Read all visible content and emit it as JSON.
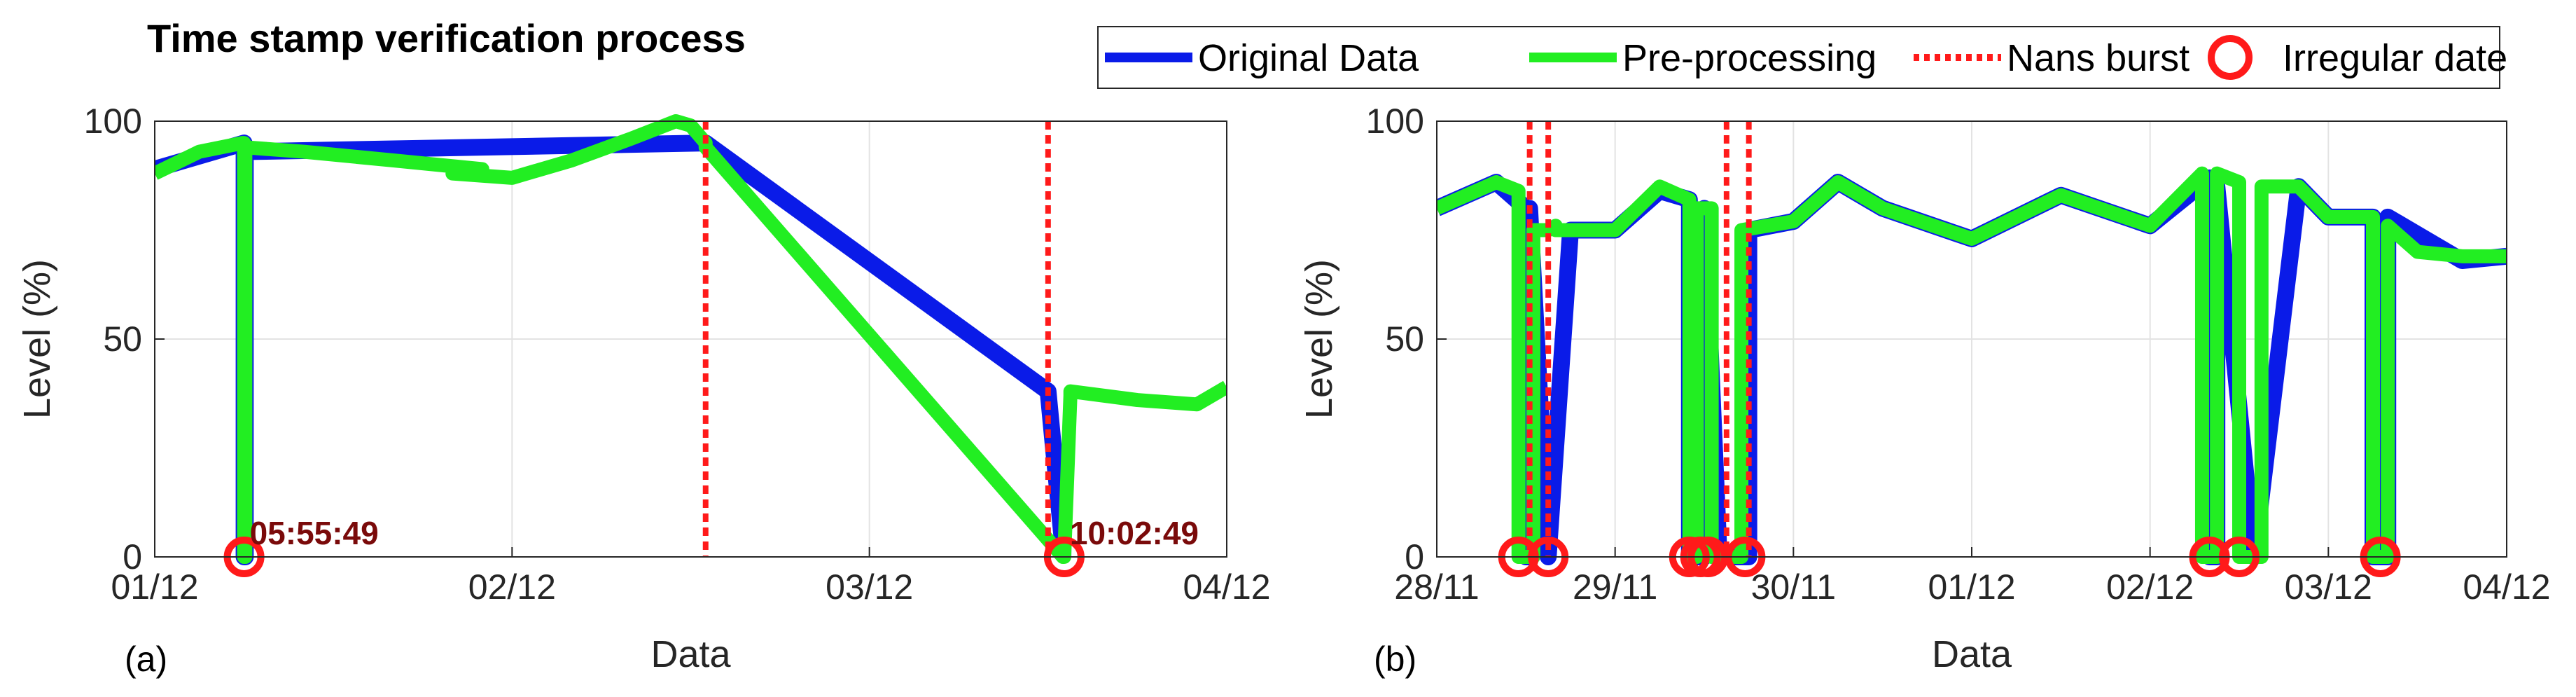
{
  "title": "Time stamp verification process",
  "colors": {
    "original": "#0a1be8",
    "preprocessing": "#22ee22",
    "nans": "#ff1a1a",
    "irregular": "#ff1a1a",
    "annotation": "#7a0a0a"
  },
  "legend": [
    {
      "key": "original",
      "label": "Original Data",
      "style": "line"
    },
    {
      "key": "preprocessing",
      "label": "Pre-processing",
      "style": "line"
    },
    {
      "key": "nans",
      "label": "Nans burst",
      "style": "dotted"
    },
    {
      "key": "irregular",
      "label": "Irregular date",
      "style": "circle"
    }
  ],
  "chart_data": [
    {
      "type": "line",
      "panel_label": "(a)",
      "xlabel": "Data",
      "ylabel": "Level (%)",
      "xlim": [
        "01/12 00:00",
        "04/12 00:00"
      ],
      "ylim": [
        0,
        100
      ],
      "yticks": [
        0,
        50,
        100
      ],
      "xticks": [
        "01/12",
        "02/12",
        "03/12",
        "04/12"
      ],
      "grid": true,
      "series": [
        {
          "name": "Original Data",
          "key": "original",
          "x": [
            "01/12 00:00",
            "01/12 06:00",
            "01/12 06:00",
            "01/12 06:05",
            "01/12 06:05",
            "02/12 13:00",
            "03/12 12:00",
            "03/12 13:00",
            "03/12 13:00"
          ],
          "y": [
            89,
            95,
            0,
            0,
            93,
            95,
            38,
            2,
            0
          ]
        },
        {
          "name": "Pre-processing",
          "key": "preprocessing",
          "x": [
            "01/12 00:00",
            "01/12 03:00",
            "01/12 05:55",
            "01/12 06:00",
            "01/12 06:00",
            "01/12 06:05",
            "01/12 06:05",
            "01/12 10:00",
            "01/12 16:00",
            "01/12 22:00",
            "01/12 20:00",
            "02/12 00:00",
            "02/12 04:00",
            "02/12 08:00",
            "02/12 11:00",
            "02/12 12:00",
            "02/12 13:00",
            "02/12 13:00",
            "03/12 13:00",
            "03/12 13:05",
            "03/12 13:30",
            "03/12 13:30",
            "03/12 18:00",
            "03/12 22:00",
            "04/12 00:00"
          ],
          "y": [
            88,
            93,
            95,
            95,
            0,
            0,
            94,
            93,
            91,
            89,
            88,
            87,
            91,
            96,
            100,
            99,
            95,
            94,
            0,
            0,
            37,
            38,
            36,
            35,
            39
          ]
        },
        {
          "name": "Nans burst",
          "key": "nans",
          "x": [
            "02/12 13:00",
            "03/12 12:00"
          ]
        },
        {
          "name": "Irregular date",
          "key": "irregular",
          "x": [
            "01/12 06:00",
            "03/12 13:05"
          ],
          "y": [
            0,
            0
          ]
        }
      ],
      "annotations": [
        {
          "text": "05:55:49",
          "x": "01/12 06:00",
          "y": 0
        },
        {
          "text": "10:02:49",
          "x": "03/12 13:05",
          "y": 0
        }
      ]
    },
    {
      "type": "line",
      "panel_label": "(b)",
      "xlabel": "Data",
      "ylabel": "Level (%)",
      "xlim": [
        "28/11 00:00",
        "04/12 00:00"
      ],
      "ylim": [
        0,
        100
      ],
      "yticks": [
        0,
        50,
        100
      ],
      "xticks": [
        "28/11",
        "29/11",
        "30/11",
        "01/12",
        "02/12",
        "03/12",
        "04/12"
      ],
      "grid": true,
      "series": [
        {
          "name": "Original Data",
          "key": "original",
          "x": [
            "28/11 00:00",
            "28/11 08:00",
            "28/11 12:00",
            "28/11 12:00",
            "28/11 12:30",
            "28/11 12:30",
            "28/11 15:00",
            "28/11 15:00",
            "28/11 18:00",
            "29/11 00:00",
            "29/11 06:00",
            "29/11 10:00",
            "29/11 10:00",
            "29/11 12:00",
            "29/11 12:00",
            "29/11 14:00",
            "29/11 14:00",
            "29/11 15:30",
            "29/11 18:00",
            "29/11 18:00",
            "30/11 00:00",
            "30/11 06:00",
            "30/11 12:00",
            "01/12 00:00",
            "01/12 12:00",
            "02/12 00:00",
            "02/12 08:00",
            "02/12 08:00",
            "02/12 09:00",
            "02/12 09:00",
            "02/12 14:00",
            "02/12 14:00",
            "02/12 20:00",
            "03/12 00:00",
            "03/12 06:00",
            "03/12 06:00",
            "03/12 08:00",
            "03/12 08:00",
            "03/12 12:00",
            "03/12 18:00",
            "04/12 00:00"
          ],
          "y": [
            80,
            86,
            80,
            0,
            0,
            80,
            0,
            0,
            75,
            75,
            84,
            82,
            0,
            0,
            80,
            0,
            0,
            0,
            0,
            75,
            77,
            86,
            80,
            73,
            83,
            76,
            87,
            0,
            0,
            85,
            0,
            0,
            85,
            78,
            78,
            0,
            0,
            78,
            74,
            68,
            69
          ]
        },
        {
          "name": "Pre-processing",
          "key": "preprocessing",
          "x": [
            "28/11 00:00",
            "28/11 08:00",
            "28/11 11:00",
            "28/11 11:00",
            "28/11 13:00",
            "28/11 13:00",
            "28/11 15:00",
            "28/11 16:00",
            "28/11 16:00",
            "29/11 00:00",
            "29/11 06:00",
            "29/11 10:00",
            "29/11 10:00",
            "29/11 11:00",
            "29/11 11:00",
            "29/11 13:00",
            "29/11 13:00",
            "29/11 17:00",
            "29/11 17:00",
            "30/11 00:00",
            "30/11 06:00",
            "30/11 12:00",
            "01/12 00:00",
            "01/12 12:00",
            "02/12 00:00",
            "02/12 07:00",
            "02/12 07:00",
            "02/12 09:00",
            "02/12 09:00",
            "02/12 12:00",
            "02/12 12:00",
            "02/12 15:00",
            "02/12 15:00",
            "02/12 20:00",
            "03/12 00:00",
            "03/12 06:00",
            "03/12 06:00",
            "03/12 08:00",
            "03/12 08:00",
            "03/12 12:00",
            "03/12 18:00",
            "04/12 00:00"
          ],
          "y": [
            80,
            86,
            84,
            0,
            0,
            75,
            75,
            76,
            75,
            75,
            85,
            82,
            0,
            0,
            80,
            80,
            0,
            0,
            75,
            77,
            86,
            80,
            73,
            83,
            76,
            88,
            0,
            0,
            88,
            86,
            0,
            0,
            85,
            85,
            78,
            78,
            0,
            0,
            76,
            70,
            69,
            69
          ]
        },
        {
          "name": "Nans burst",
          "key": "nans",
          "x": [
            "28/11 12:30",
            "28/11 15:00",
            "29/11 15:00",
            "29/11 18:00"
          ]
        },
        {
          "name": "Irregular date",
          "key": "irregular",
          "x": [
            "28/11 11:00",
            "28/11 15:00",
            "29/11 10:00",
            "29/11 11:30",
            "29/11 12:30",
            "29/11 17:30",
            "02/12 08:00",
            "02/12 12:00",
            "03/12 07:00"
          ],
          "y": [
            0,
            0,
            0,
            0,
            0,
            0,
            0,
            0,
            0
          ]
        }
      ]
    }
  ]
}
